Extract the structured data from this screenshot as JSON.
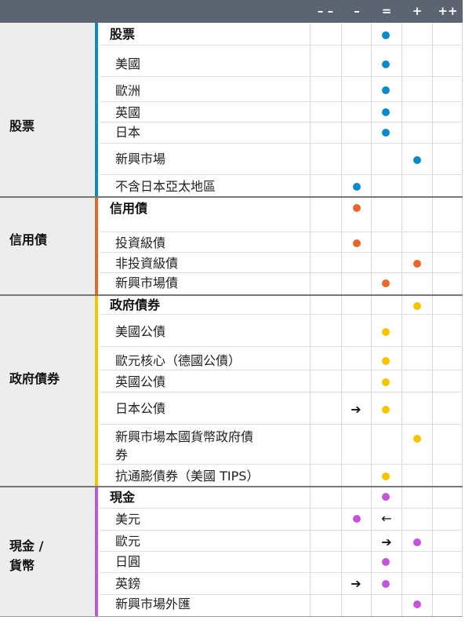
{
  "header": {
    "scale": [
      "– –",
      "–",
      "=",
      "+",
      "++"
    ]
  },
  "colors": {
    "equity": "#0b8ac9",
    "credit": "#e8662a",
    "govt": "#f7c200",
    "cash": "#c355d8"
  },
  "sections": [
    {
      "label": "股票",
      "color": "#0b8ac9",
      "rows": [
        {
          "label": "股票",
          "head": true,
          "pos": 2,
          "arrow": null
        },
        {
          "label": "美國",
          "pos": 2,
          "arrow": null
        },
        {
          "label": "歐洲",
          "pos": 2,
          "arrow": null
        },
        {
          "label": "英國",
          "pos": 2,
          "arrow": null
        },
        {
          "label": "日本",
          "pos": 2,
          "arrow": null
        },
        {
          "label": "新興市場",
          "pos": 3,
          "arrow": null
        },
        {
          "label": "不含日本亞太地區",
          "pos": 1,
          "arrow": null
        }
      ]
    },
    {
      "label": "信用債",
      "color": "#e8662a",
      "rows": [
        {
          "label": "信用債",
          "head": true,
          "pos": 1,
          "arrow": null
        },
        {
          "label": "投資級債",
          "pos": 1,
          "arrow": null
        },
        {
          "label": "非投資級債",
          "pos": 3,
          "arrow": null
        },
        {
          "label": "新興市場債",
          "pos": 2,
          "arrow": null
        }
      ]
    },
    {
      "label": "政府債券",
      "color": "#f7c200",
      "rows": [
        {
          "label": "政府債券",
          "head": true,
          "pos": 3,
          "arrow": null
        },
        {
          "label": "美國公債",
          "pos": 2,
          "arrow": null
        },
        {
          "label": "歐元核心（德國公債）",
          "pos": 2,
          "arrow": null
        },
        {
          "label": "英國公債",
          "pos": 2,
          "arrow": null
        },
        {
          "label": "日本公債",
          "pos": 2,
          "arrow": "➔"
        },
        {
          "label": "新興市場本國貨幣政府債",
          "label2": "券",
          "pos": 3,
          "arrow": null
        },
        {
          "label": "抗通膨債券（美國 TIPS）",
          "pos": 2,
          "arrow": null
        }
      ]
    },
    {
      "label": "現金 /",
      "label2": "貨幣",
      "color": "#c355d8",
      "rows": [
        {
          "label": "現金",
          "head": true,
          "pos": 2,
          "arrow": null
        },
        {
          "label": "美元",
          "pos": 1,
          "arrow": "←"
        },
        {
          "label": "歐元",
          "pos": 3,
          "arrow": "➔"
        },
        {
          "label": "日圓",
          "pos": 2,
          "arrow": null
        },
        {
          "label": "英鎊",
          "pos": 2,
          "arrow": "➔"
        },
        {
          "label": "新興市場外匯",
          "pos": 3,
          "arrow": null
        }
      ]
    }
  ]
}
